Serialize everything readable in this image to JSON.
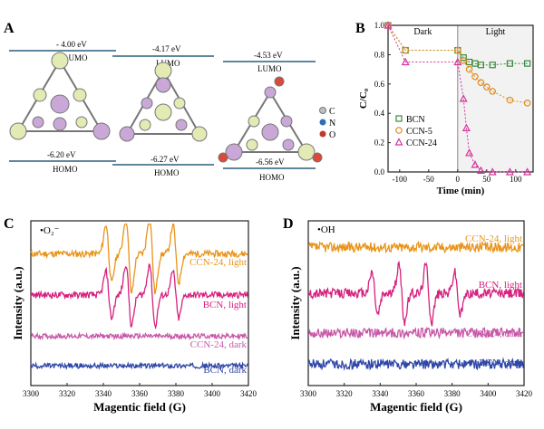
{
  "panels": {
    "a": {
      "label": "A",
      "orbital_legend": [
        "C",
        "N",
        "O"
      ],
      "orbital_legend_colors": [
        "#bfbfbf",
        "#2a6fb3",
        "#c0392b"
      ],
      "molecules": [
        {
          "lumo_energy": "- 4.00 eV",
          "lumo_label": "LUMO",
          "homo_energy": "-6.20 eV",
          "homo_label": "HOMO"
        },
        {
          "lumo_energy": "-4.17 eV",
          "lumo_label": "LUMO",
          "homo_energy": "-6.27 eV",
          "homo_label": "HOMO"
        },
        {
          "lumo_energy": "-4.53 eV",
          "lumo_label": "LUMO",
          "homo_energy": "-6.56 eV",
          "homo_label": "HOMO"
        }
      ]
    },
    "b": {
      "label": "B",
      "region_left": "Dark",
      "region_right": "Light"
    },
    "c": {
      "label": "C",
      "species": "•O₂⁻"
    },
    "d": {
      "label": "D",
      "species": "•OH"
    }
  },
  "chart_data": [
    {
      "type": "line",
      "title": "",
      "xlabel": "Time (min)",
      "ylabel": "C/C₀",
      "xlim": [
        -120,
        130
      ],
      "ylim": [
        0,
        1.0
      ],
      "xticks": [
        -100,
        -50,
        0,
        50,
        100
      ],
      "yticks": [
        0.0,
        0.2,
        0.4,
        0.6,
        0.8,
        1.0
      ],
      "legend_position": "center-left",
      "series": [
        {
          "name": "BCN",
          "color": "#3a8a3a",
          "marker": "square",
          "x": [
            -120,
            -90,
            0,
            10,
            20,
            30,
            40,
            60,
            90,
            120
          ],
          "y": [
            1.0,
            0.83,
            0.83,
            0.78,
            0.75,
            0.74,
            0.73,
            0.73,
            0.74,
            0.74
          ]
        },
        {
          "name": "CCN-5",
          "color": "#e08a1e",
          "marker": "circle",
          "x": [
            -120,
            -90,
            0,
            10,
            20,
            30,
            40,
            50,
            60,
            90,
            120
          ],
          "y": [
            1.0,
            0.83,
            0.83,
            0.76,
            0.7,
            0.65,
            0.61,
            0.58,
            0.55,
            0.49,
            0.47
          ]
        },
        {
          "name": "CCN-24",
          "color": "#d6339b",
          "marker": "triangle",
          "x": [
            -120,
            -90,
            0,
            10,
            15,
            20,
            30,
            40,
            60,
            90,
            120
          ],
          "y": [
            1.0,
            0.75,
            0.75,
            0.5,
            0.3,
            0.13,
            0.05,
            0.01,
            0.0,
            0.0,
            0.0
          ]
        }
      ]
    },
    {
      "type": "line",
      "title": "",
      "xlabel": "Magentic field (G)",
      "ylabel": "Intensity (a.u.)",
      "xlim": [
        3300,
        3420
      ],
      "xticks": [
        3300,
        3320,
        3340,
        3360,
        3380,
        3400,
        3420
      ],
      "series": [
        {
          "name": "CCN-24, light",
          "color": "#e8941a",
          "baseline": 0.8,
          "amplitude": 0.3,
          "peaks": [
            3343,
            3354,
            3367,
            3380
          ],
          "noise": 0.02
        },
        {
          "name": "BCN, light",
          "color": "#d6217f",
          "baseline": 0.55,
          "amplitude": 0.24,
          "peaks": [
            3343,
            3354,
            3367,
            3380
          ],
          "noise": 0.02
        },
        {
          "name": "CCN-24, dark",
          "color": "#c758a8",
          "baseline": 0.3,
          "amplitude": 0.0,
          "peaks": [],
          "noise": 0.015
        },
        {
          "name": "BCN, dark",
          "color": "#2e47a8",
          "baseline": 0.12,
          "amplitude": 0.0,
          "peaks": [],
          "noise": 0.015
        }
      ]
    },
    {
      "type": "line",
      "title": "",
      "xlabel": "Magentic field (G)",
      "ylabel": "Intensity (a.u.)",
      "xlim": [
        3300,
        3420
      ],
      "xticks": [
        3300,
        3320,
        3340,
        3360,
        3380,
        3400,
        3420
      ],
      "series": [
        {
          "name": "CCN-24, light",
          "color": "#e8941a",
          "baseline": 0.84,
          "amplitude": 0.0,
          "peaks": [],
          "noise": 0.03
        },
        {
          "name": "BCN, light",
          "color": "#d6217f",
          "baseline": 0.56,
          "amplitude": 0.22,
          "peaks": [
            3337,
            3352,
            3367,
            3383
          ],
          "noise": 0.03
        },
        {
          "name": "CCN-24, dark",
          "color": "#c758a8",
          "baseline": 0.32,
          "amplitude": 0.0,
          "peaks": [],
          "noise": 0.03
        },
        {
          "name": "BCN, dark",
          "color": "#2e47a8",
          "baseline": 0.13,
          "amplitude": 0.0,
          "peaks": [],
          "noise": 0.03
        }
      ]
    }
  ]
}
